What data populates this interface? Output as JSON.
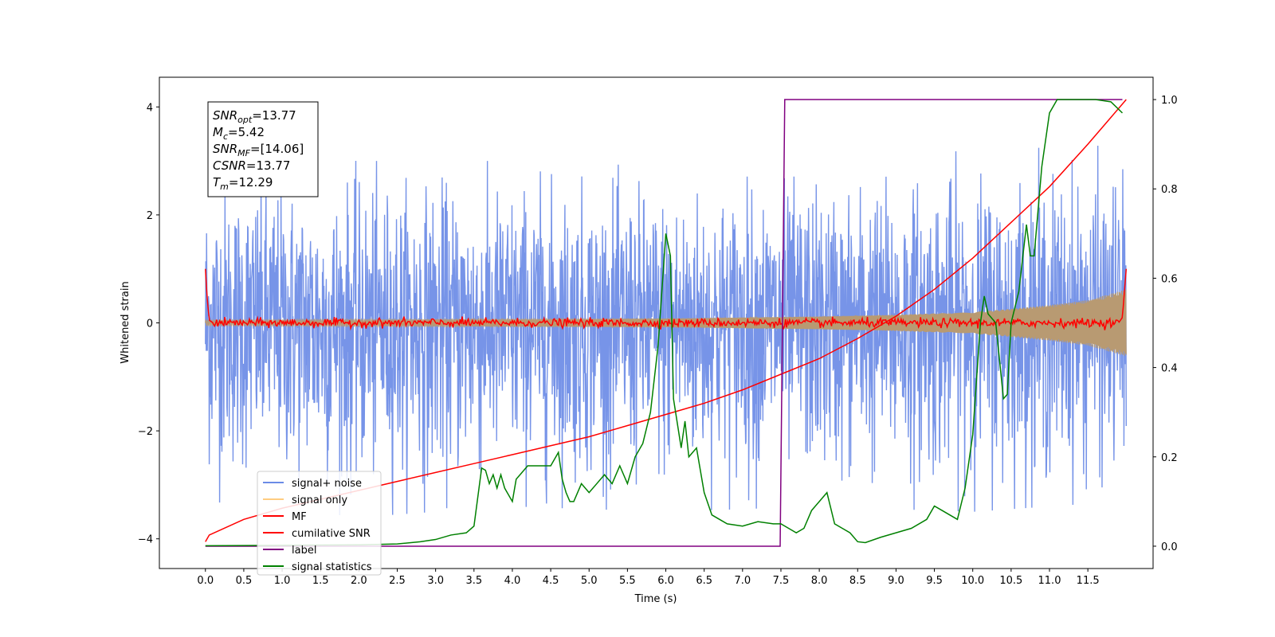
{
  "chart_data": {
    "type": "line",
    "title": "",
    "xlabel": "Time (s)",
    "ylabel": "Whitened strain",
    "ylabel_right": "",
    "xlim": [
      -0.6,
      12.35
    ],
    "ylim": [
      -4.55,
      4.55
    ],
    "ylim_right": [
      -0.05,
      1.05
    ],
    "xticks": [
      "0.0",
      "0.5",
      "1.0",
      "1.5",
      "2.0",
      "2.5",
      "3.0",
      "3.5",
      "4.0",
      "4.5",
      "5.0",
      "5.5",
      "6.0",
      "6.5",
      "7.0",
      "7.5",
      "8.0",
      "8.5",
      "9.0",
      "9.5",
      "10.0",
      "10.5",
      "11.0",
      "11.5"
    ],
    "yticks": [
      "−4",
      "−2",
      "0",
      "2",
      "4"
    ],
    "yticks_right": [
      "0.0",
      "0.2",
      "0.4",
      "0.6",
      "0.8",
      "1.0"
    ],
    "grid": false,
    "legend_position": "lower-left",
    "legend": [
      {
        "label": "signal+ noise",
        "color": "#6b8be6"
      },
      {
        "label": "signal only",
        "color": "#ffcc80"
      },
      {
        "label": "MF",
        "color": "#ff0000"
      },
      {
        "label": "cumilative SNR",
        "color": "#ff0000"
      },
      {
        "label": "label",
        "color": "#800080"
      },
      {
        "label": "signal statistics",
        "color": "#008000"
      }
    ],
    "annotation": [
      {
        "sym": "SNR",
        "sub": "opt",
        "value": "=13.77"
      },
      {
        "sym": "M",
        "sub": "c",
        "value": "=5.42"
      },
      {
        "sym": "SNR",
        "sub": "MF",
        "value": "=[14.06]"
      },
      {
        "sym": "CSNR",
        "sub": "",
        "value": "=13.77"
      },
      {
        "sym": "T",
        "sub": "m",
        "value": "=12.29"
      }
    ],
    "series": [
      {
        "name": "signal+ noise",
        "axis": "left",
        "color": "#6b8be6",
        "x_range": [
          0.0,
          12.0
        ],
        "amplitude_envelope": {
          "x": [
            0,
            2,
            4,
            6,
            8,
            10,
            12
          ],
          "min": [
            -3.3,
            -3.6,
            -3.4,
            -3.5,
            -3.4,
            -3.5,
            -3.3
          ],
          "max": [
            3.1,
            3.0,
            3.0,
            2.9,
            3.0,
            3.2,
            3.3
          ]
        }
      },
      {
        "name": "signal only",
        "axis": "left",
        "color": "#ffcc80",
        "x": [
          0.0,
          2.0,
          4.0,
          6.0,
          8.0,
          9.0,
          10.0,
          10.5,
          11.0,
          11.5,
          12.0
        ],
        "amplitude": [
          0.05,
          0.06,
          0.07,
          0.08,
          0.12,
          0.15,
          0.2,
          0.26,
          0.33,
          0.42,
          0.62
        ]
      },
      {
        "name": "MF",
        "axis": "left",
        "color": "#ff0000",
        "x": [
          0.0,
          0.02,
          0.05,
          0.1,
          11.9,
          11.95,
          12.0
        ],
        "y": [
          1.0,
          0.5,
          0.05,
          0.0,
          0.0,
          0.1,
          1.0
        ],
        "noise_amplitude": 0.08
      },
      {
        "name": "cumilative SNR",
        "axis": "right",
        "color": "#ff0000",
        "x": [
          0.0,
          0.05,
          0.5,
          1.0,
          1.5,
          2.0,
          2.5,
          3.0,
          3.5,
          4.0,
          4.5,
          5.0,
          5.5,
          6.0,
          6.5,
          7.0,
          7.5,
          8.0,
          8.5,
          9.0,
          9.5,
          10.0,
          10.5,
          11.0,
          11.5,
          11.8,
          12.0
        ],
        "y": [
          0.01,
          0.025,
          0.06,
          0.085,
          0.105,
          0.125,
          0.145,
          0.165,
          0.185,
          0.205,
          0.225,
          0.245,
          0.27,
          0.295,
          0.32,
          0.35,
          0.385,
          0.42,
          0.465,
          0.515,
          0.575,
          0.645,
          0.725,
          0.805,
          0.9,
          0.96,
          1.0
        ]
      },
      {
        "name": "label",
        "axis": "right",
        "color": "#800080",
        "x": [
          0.0,
          7.49,
          7.55,
          11.95
        ],
        "y": [
          0.0,
          0.0,
          1.0,
          1.0
        ]
      },
      {
        "name": "signal statistics",
        "axis": "right",
        "color": "#008000",
        "x": [
          0.0,
          1.0,
          2.0,
          2.5,
          2.8,
          3.0,
          3.2,
          3.4,
          3.5,
          3.6,
          3.65,
          3.7,
          3.75,
          3.8,
          3.85,
          3.9,
          4.0,
          4.05,
          4.1,
          4.2,
          4.3,
          4.4,
          4.5,
          4.6,
          4.65,
          4.7,
          4.75,
          4.8,
          4.9,
          5.0,
          5.1,
          5.2,
          5.3,
          5.4,
          5.5,
          5.6,
          5.7,
          5.8,
          5.9,
          6.0,
          6.06,
          6.1,
          6.2,
          6.25,
          6.3,
          6.4,
          6.5,
          6.6,
          6.7,
          6.8,
          7.0,
          7.2,
          7.4,
          7.5,
          7.6,
          7.7,
          7.8,
          7.9,
          8.0,
          8.1,
          8.2,
          8.3,
          8.4,
          8.5,
          8.6,
          8.8,
          9.0,
          9.2,
          9.4,
          9.5,
          9.6,
          9.7,
          9.8,
          9.9,
          10.0,
          10.1,
          10.15,
          10.2,
          10.3,
          10.4,
          10.45,
          10.5,
          10.6,
          10.7,
          10.75,
          10.8,
          10.9,
          11.0,
          11.1,
          11.2,
          11.3,
          11.4,
          11.6,
          11.8,
          11.95
        ],
        "y": [
          0.001,
          0.002,
          0.003,
          0.005,
          0.01,
          0.015,
          0.025,
          0.03,
          0.045,
          0.175,
          0.17,
          0.14,
          0.16,
          0.13,
          0.16,
          0.13,
          0.1,
          0.15,
          0.16,
          0.18,
          0.18,
          0.18,
          0.18,
          0.21,
          0.15,
          0.12,
          0.1,
          0.1,
          0.14,
          0.12,
          0.14,
          0.16,
          0.14,
          0.18,
          0.14,
          0.2,
          0.23,
          0.3,
          0.45,
          0.7,
          0.65,
          0.33,
          0.22,
          0.28,
          0.2,
          0.22,
          0.12,
          0.07,
          0.06,
          0.05,
          0.045,
          0.055,
          0.05,
          0.05,
          0.04,
          0.03,
          0.04,
          0.08,
          0.1,
          0.12,
          0.05,
          0.04,
          0.03,
          0.01,
          0.008,
          0.02,
          0.03,
          0.04,
          0.06,
          0.09,
          0.08,
          0.07,
          0.06,
          0.13,
          0.25,
          0.5,
          0.56,
          0.52,
          0.5,
          0.33,
          0.34,
          0.5,
          0.57,
          0.72,
          0.65,
          0.65,
          0.85,
          0.97,
          1.0,
          1.0,
          1.0,
          1.0,
          1.0,
          0.995,
          0.97
        ]
      }
    ]
  }
}
